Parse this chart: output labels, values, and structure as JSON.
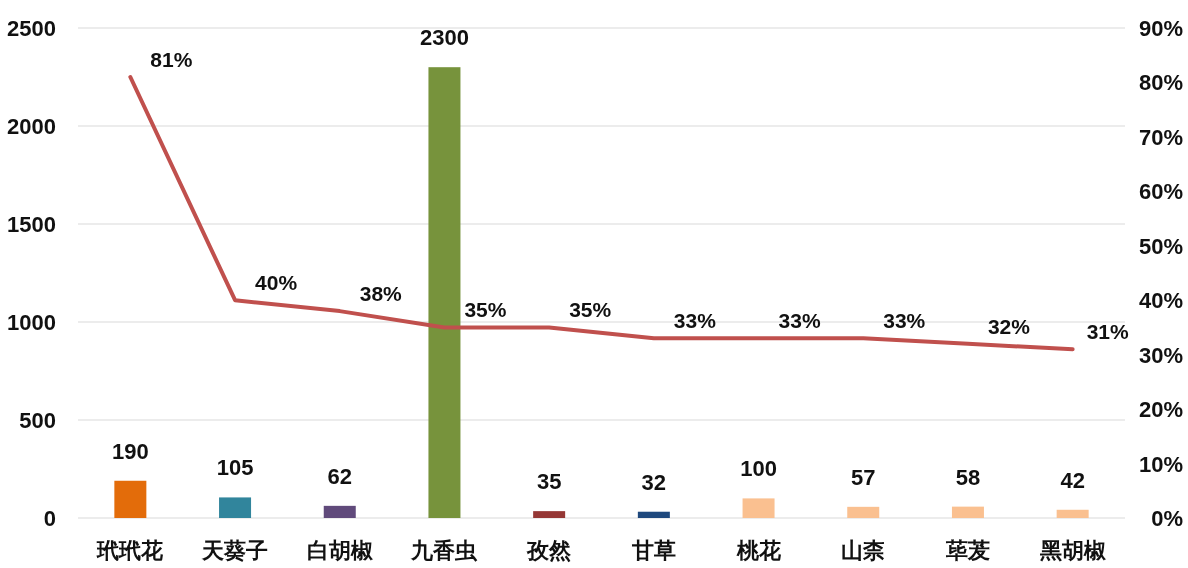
{
  "chart_data": {
    "type": "bar",
    "categories": [
      "玳玳花",
      "天葵子",
      "白胡椒",
      "九香虫",
      "孜然",
      "甘草",
      "桃花",
      "山柰",
      "荜茇",
      "黑胡椒"
    ],
    "series": [
      {
        "colors": [
          "#e36c0a",
          "#31859c",
          "#604a7b",
          "#77933c",
          "#953735",
          "#1f497d",
          "#fac090",
          "#fac090",
          "#fac090",
          "#fac090"
        ],
        "values": [
          190,
          105,
          62,
          2300,
          35,
          32,
          100,
          57,
          58,
          42
        ],
        "value_labels": [
          "190",
          "105",
          "62",
          "2300",
          "35",
          "32",
          "100",
          "57",
          "58",
          "42"
        ]
      },
      {
        "type": "line",
        "axis": "y2",
        "color": "#c0504d",
        "values": [
          81,
          40,
          38,
          35,
          35,
          33,
          33,
          33,
          32,
          31
        ],
        "value_labels": [
          "81%",
          "40%",
          "38%",
          "35%",
          "35%",
          "33%",
          "33%",
          "33%",
          "32%",
          "31%"
        ]
      }
    ],
    "ylim": [
      0,
      2500
    ],
    "yticks": [
      0,
      500,
      1000,
      1500,
      2000,
      2500
    ],
    "y2lim": [
      0,
      90
    ],
    "y2ticks": [
      {
        "value": 0,
        "label": "0%"
      },
      {
        "value": 10,
        "label": "10%"
      },
      {
        "value": 20,
        "label": "20%"
      },
      {
        "value": 30,
        "label": "30%"
      },
      {
        "value": 40,
        "label": "40%"
      },
      {
        "value": 50,
        "label": "50%"
      },
      {
        "value": 60,
        "label": "60%"
      },
      {
        "value": 70,
        "label": "70%"
      },
      {
        "value": 80,
        "label": "80%"
      },
      {
        "value": 90,
        "label": "90%"
      }
    ],
    "grid": "y"
  }
}
